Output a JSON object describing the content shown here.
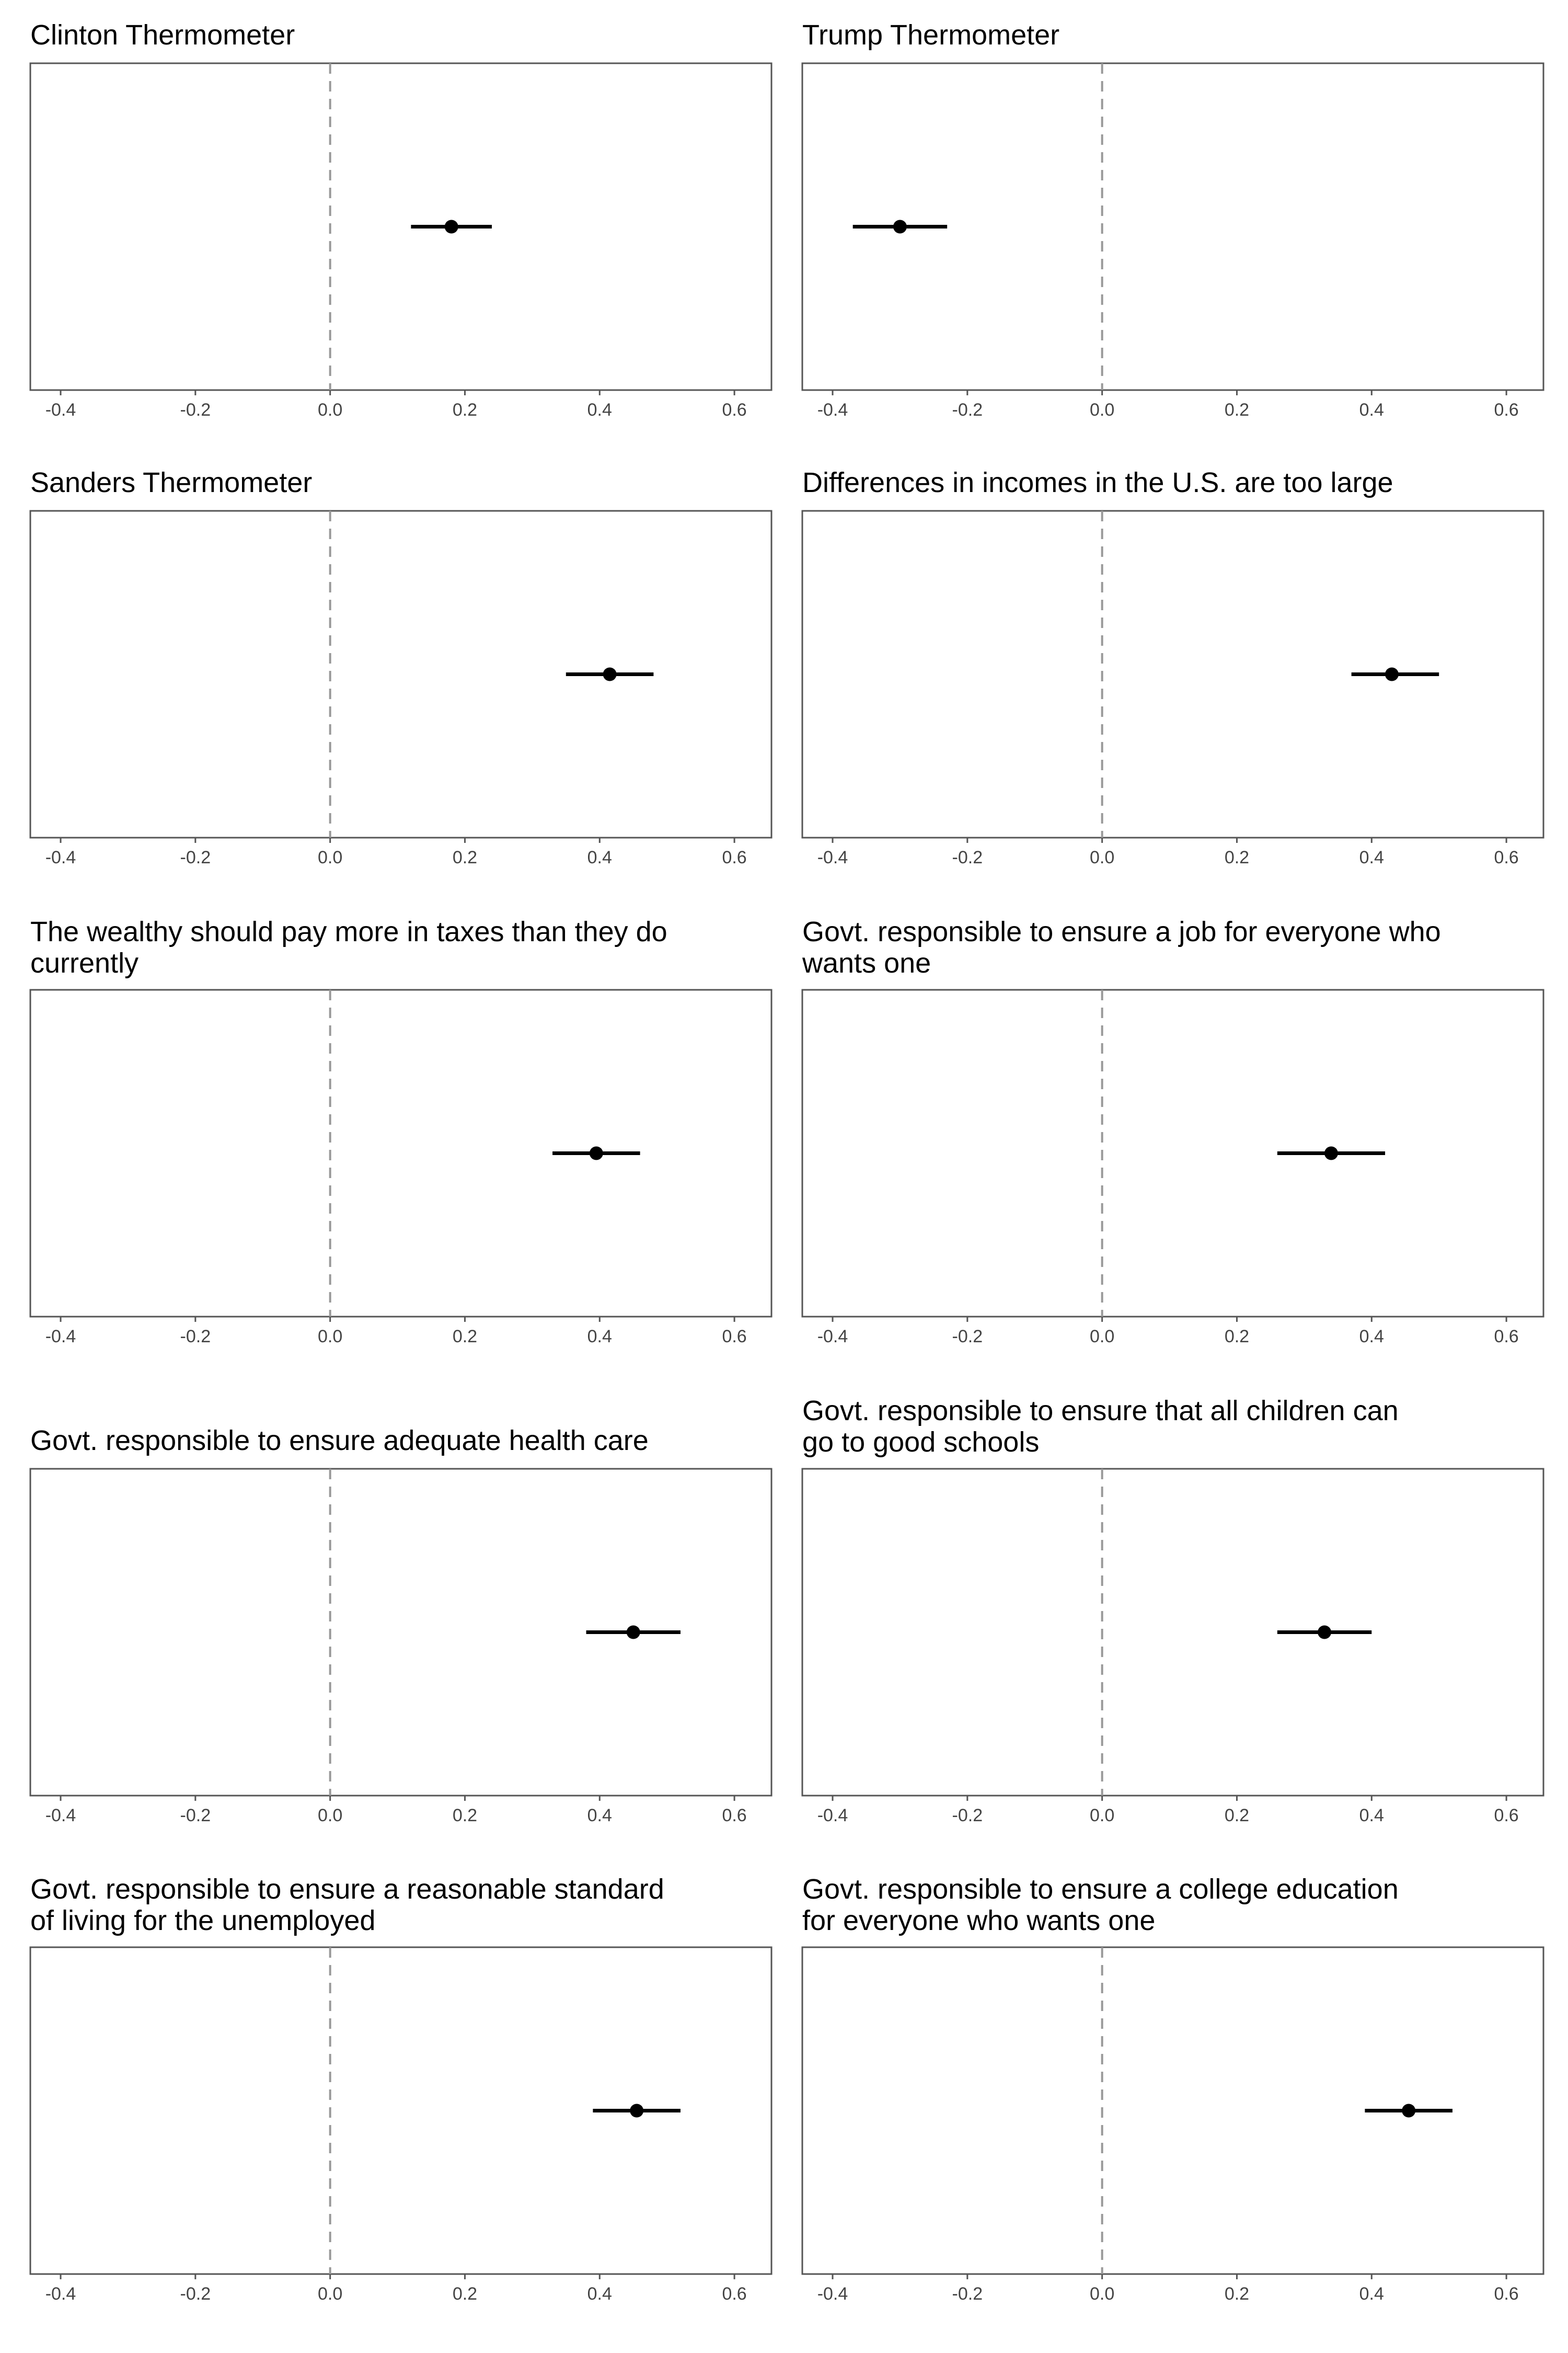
{
  "chart_data": [
    {
      "type": "scatter",
      "title": [
        "Clinton Thermometer"
      ],
      "x_ticks": [
        "-0.4",
        "-0.2",
        "0.0",
        "0.2",
        "0.4",
        "0.6"
      ],
      "xlim": [
        -0.445,
        0.655
      ],
      "reference_line": 0,
      "estimate": 0.18,
      "ci_low": 0.12,
      "ci_high": 0.24
    },
    {
      "type": "scatter",
      "title": [
        "Trump Thermometer"
      ],
      "x_ticks": [
        "-0.4",
        "-0.2",
        "0.0",
        "0.2",
        "0.4",
        "0.6"
      ],
      "xlim": [
        -0.445,
        0.655
      ],
      "reference_line": 0,
      "estimate": -0.3,
      "ci_low": -0.37,
      "ci_high": -0.23
    },
    {
      "type": "scatter",
      "title": [
        "Sanders Thermometer"
      ],
      "x_ticks": [
        "-0.4",
        "-0.2",
        "0.0",
        "0.2",
        "0.4",
        "0.6"
      ],
      "xlim": [
        -0.445,
        0.655
      ],
      "reference_line": 0,
      "estimate": 0.415,
      "ci_low": 0.35,
      "ci_high": 0.48
    },
    {
      "type": "scatter",
      "title": [
        "Differences in incomes in the U.S. are too large"
      ],
      "x_ticks": [
        "-0.4",
        "-0.2",
        "0.0",
        "0.2",
        "0.4",
        "0.6"
      ],
      "xlim": [
        -0.445,
        0.655
      ],
      "reference_line": 0,
      "estimate": 0.43,
      "ci_low": 0.37,
      "ci_high": 0.5
    },
    {
      "type": "scatter",
      "title": [
        "The wealthy should pay more in taxes than they do",
        "currently"
      ],
      "x_ticks": [
        "-0.4",
        "-0.2",
        "0.0",
        "0.2",
        "0.4",
        "0.6"
      ],
      "xlim": [
        -0.445,
        0.655
      ],
      "reference_line": 0,
      "estimate": 0.395,
      "ci_low": 0.33,
      "ci_high": 0.46
    },
    {
      "type": "scatter",
      "title": [
        "Govt. responsible to ensure a job for everyone who",
        "wants one"
      ],
      "x_ticks": [
        "-0.4",
        "-0.2",
        "0.0",
        "0.2",
        "0.4",
        "0.6"
      ],
      "xlim": [
        -0.445,
        0.655
      ],
      "reference_line": 0,
      "estimate": 0.34,
      "ci_low": 0.26,
      "ci_high": 0.42
    },
    {
      "type": "scatter",
      "title": [
        "Govt. responsible to ensure adequate health care"
      ],
      "x_ticks": [
        "-0.4",
        "-0.2",
        "0.0",
        "0.2",
        "0.4",
        "0.6"
      ],
      "xlim": [
        -0.445,
        0.655
      ],
      "reference_line": 0,
      "estimate": 0.45,
      "ci_low": 0.38,
      "ci_high": 0.52
    },
    {
      "type": "scatter",
      "title": [
        "Govt. responsible to ensure that all children can",
        "go to good schools"
      ],
      "x_ticks": [
        "-0.4",
        "-0.2",
        "0.0",
        "0.2",
        "0.4",
        "0.6"
      ],
      "xlim": [
        -0.445,
        0.655
      ],
      "reference_line": 0,
      "estimate": 0.33,
      "ci_low": 0.26,
      "ci_high": 0.4
    },
    {
      "type": "scatter",
      "title": [
        "Govt. responsible to ensure a reasonable standard",
        "of living for the unemployed"
      ],
      "x_ticks": [
        "-0.4",
        "-0.2",
        "0.0",
        "0.2",
        "0.4",
        "0.6"
      ],
      "xlim": [
        -0.445,
        0.655
      ],
      "reference_line": 0,
      "estimate": 0.455,
      "ci_low": 0.39,
      "ci_high": 0.52
    },
    {
      "type": "scatter",
      "title": [
        "Govt. responsible to ensure a college education",
        "for everyone who wants one"
      ],
      "x_ticks": [
        "-0.4",
        "-0.2",
        "0.0",
        "0.2",
        "0.4",
        "0.6"
      ],
      "xlim": [
        -0.445,
        0.655
      ],
      "reference_line": 0,
      "estimate": 0.455,
      "ci_low": 0.39,
      "ci_high": 0.52
    }
  ],
  "colors": {
    "point": "#000000",
    "reference_line": "#999999",
    "panel_border": "#555555",
    "tick_text": "#444444"
  }
}
